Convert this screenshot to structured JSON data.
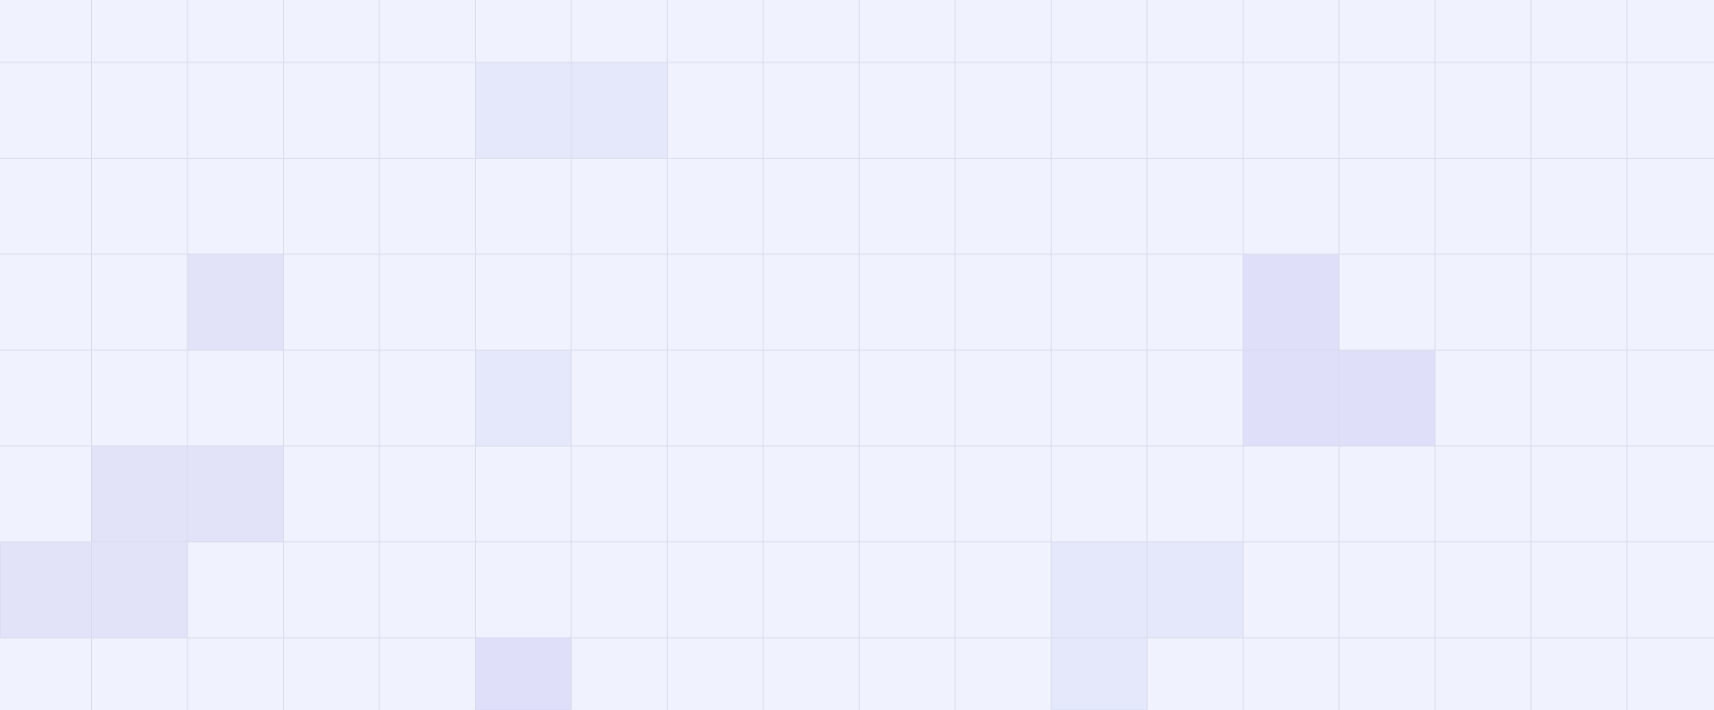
{
  "colors": {
    "background": "#f0f3fe",
    "grid_line": "#d8dbeb",
    "highlight_light": "#e5e8fa",
    "highlight_medium": "#e2e3f8",
    "highlight_strong": "#dfdffa",
    "highlight_border": "#c8cbe6"
  },
  "grid": {
    "columns": 18,
    "rows": 8
  },
  "highlighted_cells": [
    {
      "col": 5,
      "row": 1,
      "tone": "highlight_light"
    },
    {
      "col": 6,
      "row": 1,
      "tone": "highlight_light"
    },
    {
      "col": 2,
      "row": 3,
      "tone": "highlight_medium"
    },
    {
      "col": 13,
      "row": 3,
      "tone": "highlight_strong"
    },
    {
      "col": 5,
      "row": 4,
      "tone": "highlight_light"
    },
    {
      "col": 13,
      "row": 4,
      "tone": "highlight_strong"
    },
    {
      "col": 14,
      "row": 4,
      "tone": "highlight_strong"
    },
    {
      "col": 1,
      "row": 5,
      "tone": "highlight_medium"
    },
    {
      "col": 2,
      "row": 5,
      "tone": "highlight_medium"
    },
    {
      "col": 0,
      "row": 6,
      "tone": "highlight_medium"
    },
    {
      "col": 1,
      "row": 6,
      "tone": "highlight_medium"
    },
    {
      "col": 11,
      "row": 6,
      "tone": "highlight_light"
    },
    {
      "col": 12,
      "row": 6,
      "tone": "highlight_light"
    },
    {
      "col": 5,
      "row": 7,
      "tone": "highlight_strong"
    },
    {
      "col": 11,
      "row": 7,
      "tone": "highlight_light"
    }
  ]
}
